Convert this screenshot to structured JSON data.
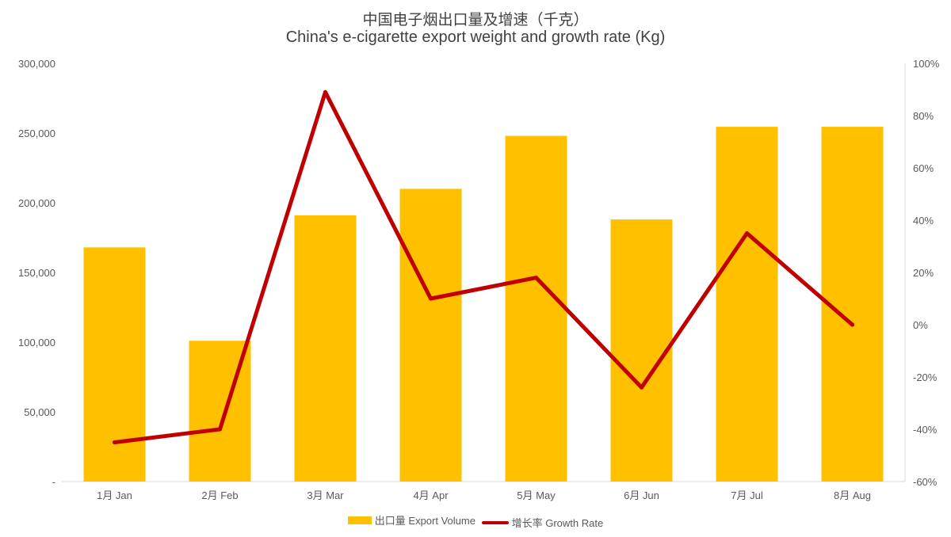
{
  "chart_data": {
    "type": "bar+line",
    "title_cn": "中国电子烟出口量及增速（千克）",
    "title_en": "China's e-cigarette export weight and growth rate (Kg)",
    "categories": [
      "1月 Jan",
      "2月 Feb",
      "3月 Mar",
      "4月 Apr",
      "5月 May",
      "6月 Jun",
      "7月 Jul",
      "8月 Aug"
    ],
    "series": [
      {
        "name": "出口量 Export Volume",
        "type": "bar",
        "axis": "left",
        "color": "#FFC000",
        "values": [
          168000,
          101000,
          191000,
          210000,
          248000,
          188000,
          254500,
          254500
        ]
      },
      {
        "name": "增长率 Growth Rate",
        "type": "line",
        "axis": "right",
        "color": "#C00000",
        "values": [
          -45,
          -40,
          89,
          10,
          18,
          -24,
          35,
          0
        ]
      }
    ],
    "left_axis": {
      "ylim": [
        0,
        300000
      ],
      "ticks": [
        0,
        50000,
        100000,
        150000,
        200000,
        250000,
        300000
      ],
      "tick_labels": [
        "-",
        "50,000",
        "100,000",
        "150,000",
        "200,000",
        "250,000",
        "300,000"
      ]
    },
    "right_axis": {
      "ylim": [
        -60,
        100
      ],
      "ticks": [
        -60,
        -40,
        -20,
        0,
        20,
        40,
        60,
        80,
        100
      ],
      "tick_labels": [
        "-60%",
        "-40%",
        "-20%",
        "0%",
        "20%",
        "40%",
        "60%",
        "80%",
        "100%"
      ]
    },
    "grid": false,
    "legend": "bottom"
  }
}
